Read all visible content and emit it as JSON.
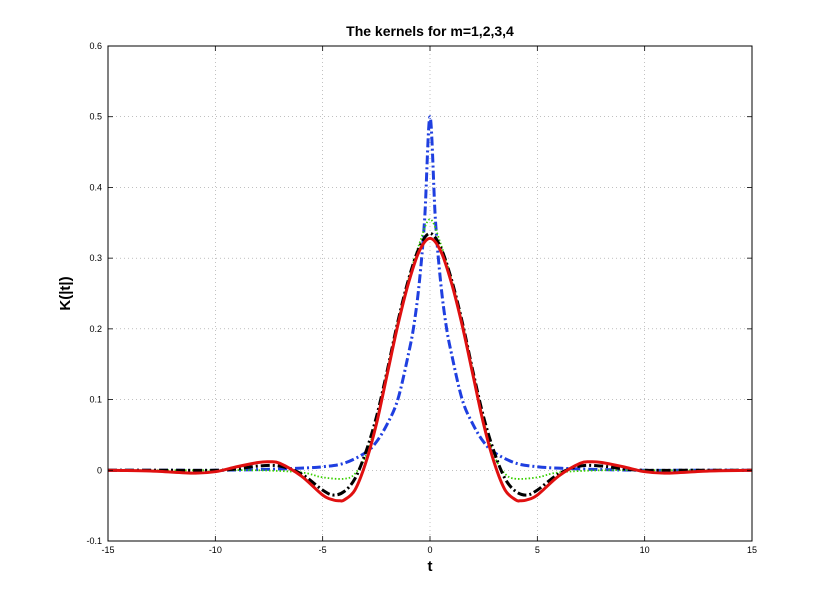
{
  "chart_data": {
    "type": "line",
    "title": "The kernels for m=1,2,3,4",
    "xlabel": "t",
    "ylabel": "K(|t|)",
    "xlim": [
      -15,
      15
    ],
    "ylim": [
      -0.1,
      0.6
    ],
    "xticks": [
      -15,
      -10,
      -5,
      0,
      5,
      10,
      15
    ],
    "yticks": [
      -0.1,
      0,
      0.1,
      0.2,
      0.3,
      0.4,
      0.5,
      0.6
    ],
    "grid": true,
    "series": [
      {
        "style": "dashdot",
        "color": "#1f3fe0",
        "x": [
          -15,
          -12,
          -10,
          -8,
          -6,
          -5,
          -4,
          -3,
          -2.5,
          -2,
          -1.5,
          -1,
          -0.75,
          -0.5,
          -0.25,
          0,
          0.25,
          0.5,
          0.75,
          1,
          1.5,
          2,
          2.5,
          3,
          4,
          5,
          6,
          8,
          10,
          12,
          15
        ],
        "y": [
          0.0,
          0.0,
          0.0,
          0.001,
          0.003,
          0.005,
          0.01,
          0.025,
          0.04,
          0.065,
          0.1,
          0.165,
          0.205,
          0.265,
          0.355,
          0.5,
          0.355,
          0.265,
          0.205,
          0.165,
          0.1,
          0.065,
          0.04,
          0.025,
          0.01,
          0.005,
          0.003,
          0.001,
          0.0,
          0.0,
          0.0
        ]
      },
      {
        "style": "dotted",
        "color": "#39d000",
        "x": [
          -15,
          -12,
          -10,
          -8,
          -6,
          -5,
          -4,
          -3.5,
          -3,
          -2.5,
          -2,
          -1.5,
          -1,
          -0.5,
          0,
          0.5,
          1,
          1.5,
          2,
          2.5,
          3,
          3.5,
          4,
          5,
          6,
          8,
          10,
          12,
          15
        ],
        "y": [
          0.0,
          0.0,
          0.0,
          0.0,
          -0.003,
          -0.01,
          -0.012,
          -0.005,
          0.02,
          0.07,
          0.14,
          0.21,
          0.27,
          0.32,
          0.355,
          0.32,
          0.27,
          0.21,
          0.14,
          0.07,
          0.02,
          -0.005,
          -0.012,
          -0.01,
          -0.003,
          0.0,
          0.0,
          0.0,
          0.0
        ]
      },
      {
        "style": "dashdot",
        "color": "#000000",
        "x": [
          -15,
          -12,
          -10,
          -9,
          -8,
          -7,
          -6,
          -5,
          -4.5,
          -4,
          -3.5,
          -3,
          -2.5,
          -2,
          -1.5,
          -1,
          -0.5,
          0,
          0.5,
          1,
          1.5,
          2,
          2.5,
          3,
          3.5,
          4,
          4.5,
          5,
          6,
          7,
          8,
          9,
          10,
          12,
          15
        ],
        "y": [
          0.0,
          0.0,
          0.0,
          0.002,
          0.006,
          0.006,
          -0.005,
          -0.028,
          -0.035,
          -0.03,
          -0.012,
          0.025,
          0.075,
          0.14,
          0.21,
          0.27,
          0.315,
          0.335,
          0.315,
          0.27,
          0.21,
          0.14,
          0.075,
          0.025,
          -0.012,
          -0.03,
          -0.035,
          -0.028,
          -0.005,
          0.006,
          0.006,
          0.002,
          0.0,
          0.0,
          0.0
        ]
      },
      {
        "style": "solid",
        "color": "#e01010",
        "x": [
          -15,
          -13,
          -11,
          -10,
          -9,
          -8,
          -7.5,
          -7,
          -6,
          -5,
          -4.5,
          -4.2,
          -4,
          -3.5,
          -3,
          -2.5,
          -2,
          -1.5,
          -1,
          -0.5,
          0,
          0.5,
          1,
          1.5,
          2,
          2.5,
          3,
          3.5,
          4,
          4.2,
          4.5,
          5,
          6,
          7,
          7.5,
          8,
          9,
          10,
          11,
          13,
          15
        ],
        "y": [
          0.0,
          -0.001,
          -0.004,
          -0.002,
          0.005,
          0.011,
          0.012,
          0.01,
          -0.008,
          -0.035,
          -0.042,
          -0.043,
          -0.042,
          -0.028,
          0.01,
          0.065,
          0.135,
          0.205,
          0.265,
          0.31,
          0.328,
          0.31,
          0.265,
          0.205,
          0.135,
          0.065,
          0.01,
          -0.028,
          -0.042,
          -0.043,
          -0.042,
          -0.035,
          -0.008,
          0.01,
          0.012,
          0.011,
          0.005,
          -0.002,
          -0.004,
          -0.001,
          0.0
        ]
      }
    ]
  }
}
